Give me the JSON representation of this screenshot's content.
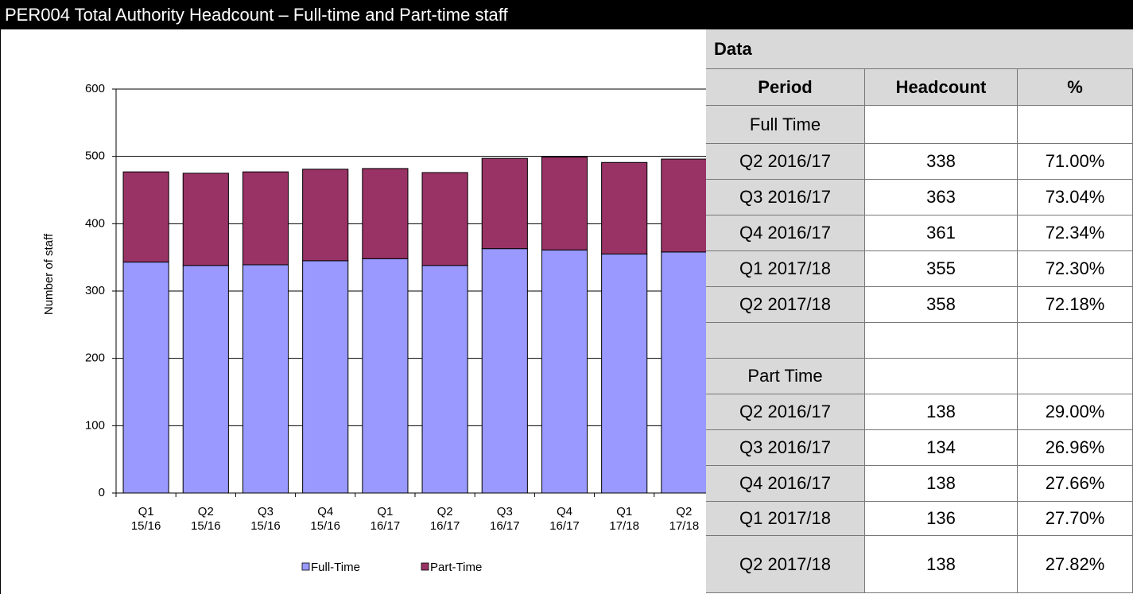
{
  "header": {
    "title": "PER004 Total Authority Headcount – Full-time and Part-time staff"
  },
  "chart_data": {
    "type": "stacked_bar",
    "y_label": "Number of staff",
    "categories": [
      "Q1 15/16",
      "Q2 15/16",
      "Q3 15/16",
      "Q4 15/16",
      "Q1 16/17",
      "Q2 16/17",
      "Q3 16/17",
      "Q4 16/17",
      "Q1 17/18",
      "Q2 17/18"
    ],
    "series": [
      {
        "name": "Full-Time",
        "color": "#9999ff",
        "values": [
          343,
          338,
          339,
          345,
          348,
          338,
          363,
          361,
          355,
          358
        ]
      },
      {
        "name": "Part-Time",
        "color": "#993366",
        "values": [
          134,
          137,
          138,
          136,
          134,
          138,
          134,
          138,
          136,
          138
        ]
      }
    ],
    "ylim": [
      0,
      600
    ],
    "yticks": [
      0,
      100,
      200,
      300,
      400,
      500,
      600
    ],
    "grid": true,
    "legend": "bottom"
  },
  "table": {
    "title": "Data",
    "columns": [
      "Period",
      "Headcount",
      "%"
    ],
    "rows": [
      [
        "Full Time"
      ],
      [
        "Q2 2016/17",
        "338",
        "71.00%"
      ],
      [
        "Q3 2016/17",
        "363",
        "73.04%"
      ],
      [
        "Q4 2016/17",
        "361",
        "72.34%"
      ],
      [
        "Q1 2017/18",
        "355",
        "72.30%"
      ],
      [
        "Q2 2017/18",
        "358",
        "72.18%"
      ],
      [],
      [
        "Part Time"
      ],
      [
        "Q2 2016/17",
        "138",
        "29.00%"
      ],
      [
        "Q3 2016/17",
        "134",
        "26.96%"
      ],
      [
        "Q4 2016/17",
        "138",
        "27.66%"
      ],
      [
        "Q1 2017/18",
        "136",
        "27.70%"
      ],
      [
        "Q2 2017/18",
        "138",
        "27.82%"
      ]
    ]
  }
}
